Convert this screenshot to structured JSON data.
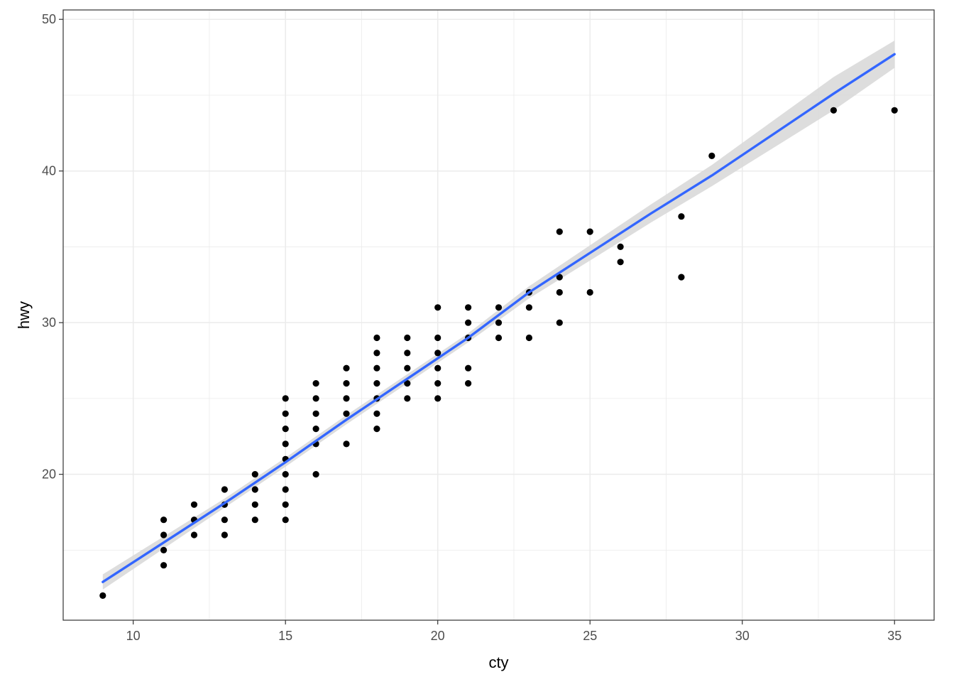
{
  "chart_data": {
    "type": "scatter",
    "title": "",
    "xlabel": "cty",
    "ylabel": "hwy",
    "xlim": [
      7.7,
      36.3
    ],
    "ylim": [
      10.38,
      50.62
    ],
    "x_ticks": [
      10,
      15,
      20,
      25,
      30,
      35
    ],
    "y_ticks": [
      20,
      30,
      40,
      50
    ],
    "x_minor_ticks": [
      12.5,
      17.5,
      22.5,
      27.5,
      32.5
    ],
    "y_minor_ticks": [
      15,
      25,
      35,
      45
    ],
    "grid": true,
    "legend": "none",
    "colors": {
      "points": "#000000",
      "smooth_line": "#3366ff",
      "confidence_band": "#d9d9d9",
      "grid": "#ebebeb",
      "panel_border": "#333333"
    },
    "points": [
      [
        9,
        12
      ],
      [
        11,
        14
      ],
      [
        11,
        15
      ],
      [
        11,
        16
      ],
      [
        11,
        17
      ],
      [
        12,
        16
      ],
      [
        12,
        17
      ],
      [
        12,
        18
      ],
      [
        13,
        16
      ],
      [
        13,
        17
      ],
      [
        13,
        18
      ],
      [
        13,
        19
      ],
      [
        14,
        17
      ],
      [
        14,
        18
      ],
      [
        14,
        19
      ],
      [
        14,
        20
      ],
      [
        15,
        17
      ],
      [
        15,
        18
      ],
      [
        15,
        19
      ],
      [
        15,
        20
      ],
      [
        15,
        21
      ],
      [
        15,
        22
      ],
      [
        15,
        23
      ],
      [
        15,
        24
      ],
      [
        15,
        25
      ],
      [
        16,
        20
      ],
      [
        16,
        22
      ],
      [
        16,
        23
      ],
      [
        16,
        24
      ],
      [
        16,
        25
      ],
      [
        16,
        26
      ],
      [
        17,
        22
      ],
      [
        17,
        24
      ],
      [
        17,
        25
      ],
      [
        17,
        26
      ],
      [
        17,
        27
      ],
      [
        18,
        23
      ],
      [
        18,
        24
      ],
      [
        18,
        25
      ],
      [
        18,
        26
      ],
      [
        18,
        27
      ],
      [
        18,
        28
      ],
      [
        18,
        29
      ],
      [
        19,
        25
      ],
      [
        19,
        26
      ],
      [
        19,
        27
      ],
      [
        19,
        28
      ],
      [
        19,
        29
      ],
      [
        20,
        25
      ],
      [
        20,
        26
      ],
      [
        20,
        27
      ],
      [
        20,
        28
      ],
      [
        20,
        29
      ],
      [
        20,
        31
      ],
      [
        21,
        26
      ],
      [
        21,
        27
      ],
      [
        21,
        29
      ],
      [
        21,
        30
      ],
      [
        21,
        31
      ],
      [
        22,
        29
      ],
      [
        22,
        30
      ],
      [
        22,
        31
      ],
      [
        23,
        29
      ],
      [
        23,
        31
      ],
      [
        23,
        32
      ],
      [
        24,
        30
      ],
      [
        24,
        32
      ],
      [
        24,
        33
      ],
      [
        24,
        36
      ],
      [
        25,
        32
      ],
      [
        25,
        36
      ],
      [
        26,
        34
      ],
      [
        26,
        35
      ],
      [
        28,
        33
      ],
      [
        28,
        37
      ],
      [
        29,
        41
      ],
      [
        33,
        44
      ],
      [
        35,
        44
      ]
    ],
    "smooth": {
      "method": "loess",
      "x": [
        9,
        11,
        13,
        15,
        17,
        19,
        21,
        23,
        25,
        27,
        29,
        31,
        33,
        35
      ],
      "y": [
        12.9,
        15.5,
        18.1,
        20.8,
        23.6,
        26.3,
        29.0,
        32.0,
        34.6,
        37.2,
        39.7,
        42.4,
        45.1,
        47.7
      ],
      "lower": [
        12.4,
        15.1,
        17.8,
        20.5,
        23.3,
        26.0,
        28.7,
        31.6,
        34.1,
        36.6,
        39.0,
        41.5,
        44.0,
        46.8
      ],
      "upper": [
        13.4,
        15.9,
        18.4,
        21.1,
        23.9,
        26.6,
        29.3,
        32.4,
        35.1,
        37.8,
        40.4,
        43.3,
        46.2,
        48.6
      ]
    }
  }
}
